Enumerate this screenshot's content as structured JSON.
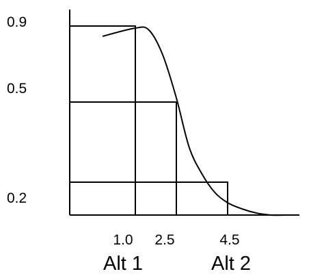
{
  "chart_data": {
    "type": "line",
    "title": "",
    "xlabel": "",
    "ylabel": "",
    "y_tick_labels": [
      "0.9",
      "0.5",
      "0.2"
    ],
    "x_tick_labels": [
      "1.0",
      "2.5",
      "4.5"
    ],
    "category_labels": [
      "Alt 1",
      "Alt 2"
    ],
    "grid": false,
    "legend": "none",
    "line_color": "#000000",
    "curve": {
      "x": [
        0.5,
        1.0,
        1.5,
        2.0,
        2.5,
        3.0,
        3.5,
        4.0,
        4.5,
        5.0,
        5.5,
        6.0,
        6.5
      ],
      "y": [
        0.87,
        0.91,
        0.9,
        0.78,
        0.57,
        0.33,
        0.2,
        0.11,
        0.06,
        0.03,
        0.01,
        0.0,
        0.0
      ]
    },
    "boxes": [
      {
        "x_end": 1.0,
        "y_top": 0.92
      },
      {
        "x_end": 2.5,
        "y_top": 0.55
      },
      {
        "x_end": 4.5,
        "y_top": 0.16
      }
    ],
    "xlim": [
      0,
      7
    ],
    "ylim": [
      0,
      1
    ]
  }
}
